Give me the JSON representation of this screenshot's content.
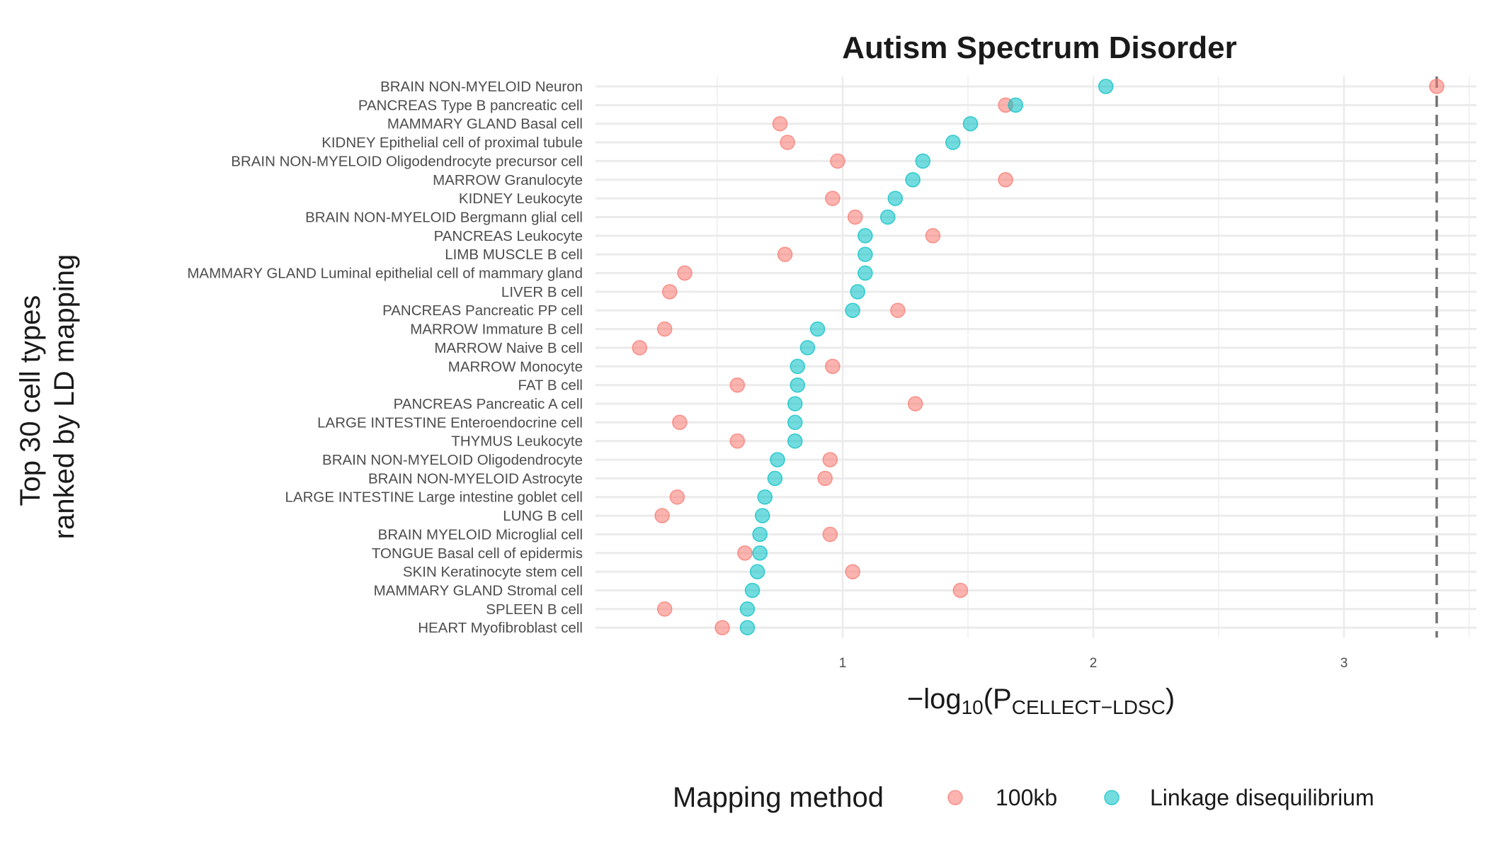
{
  "chart_data": {
    "type": "scatter",
    "title": "Autism Spectrum Disorder",
    "xlabel": {
      "main": "−log",
      "sub_10": "10",
      "open": "(P",
      "sub": "CELLECT−LDSC",
      "close": ")"
    },
    "ylabel_lines": [
      "Top 30 cell types",
      "ranked by LD mapping"
    ],
    "xlim": [
      0,
      3.5
    ],
    "xticks": [
      1,
      2,
      3
    ],
    "threshold_line": 3.37,
    "grid": true,
    "legend": {
      "title": "Mapping method",
      "placement": "bottom"
    },
    "categories": [
      "BRAIN NON-MYELOID Neuron",
      "PANCREAS Type B pancreatic cell",
      "MAMMARY GLAND Basal cell",
      "KIDNEY Epithelial cell of proximal tubule",
      "BRAIN NON-MYELOID Oligodendrocyte precursor cell",
      "MARROW Granulocyte",
      "KIDNEY Leukocyte",
      "BRAIN NON-MYELOID Bergmann glial cell",
      "PANCREAS Leukocyte",
      "LIMB MUSCLE B cell",
      "MAMMARY GLAND Luminal epithelial cell of mammary gland",
      "LIVER B cell",
      "PANCREAS Pancreatic PP cell",
      "MARROW Immature B cell",
      "MARROW Naive B cell",
      "MARROW Monocyte",
      "FAT B cell",
      "PANCREAS Pancreatic A cell",
      "LARGE INTESTINE Enteroendocrine cell",
      "THYMUS Leukocyte",
      "BRAIN NON-MYELOID Oligodendrocyte",
      "BRAIN NON-MYELOID Astrocyte",
      "LARGE INTESTINE Large intestine goblet cell",
      "LUNG B cell",
      "BRAIN MYELOID Microglial cell",
      "TONGUE Basal cell of epidermis",
      "SKIN Keratinocyte stem cell",
      "MAMMARY GLAND Stromal cell",
      "SPLEEN B cell",
      "HEART Myofibroblast cell"
    ],
    "series": [
      {
        "name": "100kb",
        "color": "#F8766D",
        "values": [
          3.37,
          1.65,
          0.75,
          0.78,
          0.98,
          1.65,
          0.96,
          1.05,
          1.36,
          0.77,
          0.37,
          0.31,
          1.22,
          0.29,
          0.19,
          0.96,
          0.58,
          1.29,
          0.35,
          0.58,
          0.95,
          0.93,
          0.34,
          0.28,
          0.95,
          0.61,
          1.04,
          1.47,
          0.29,
          0.52
        ]
      },
      {
        "name": "Linkage disequilibrium",
        "color": "#00BFC4",
        "values": [
          2.05,
          1.69,
          1.51,
          1.44,
          1.32,
          1.28,
          1.21,
          1.18,
          1.09,
          1.09,
          1.09,
          1.06,
          1.04,
          0.9,
          0.86,
          0.82,
          0.82,
          0.81,
          0.81,
          0.81,
          0.74,
          0.73,
          0.69,
          0.68,
          0.67,
          0.67,
          0.66,
          0.64,
          0.62,
          0.62
        ]
      }
    ]
  }
}
